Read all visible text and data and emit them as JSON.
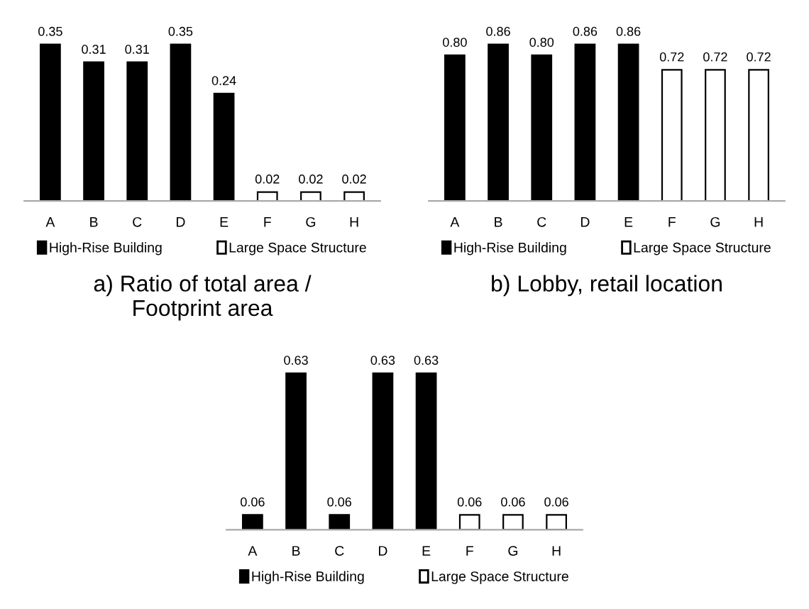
{
  "chart_data": [
    {
      "type": "bar",
      "title": "a) Ratio of total area /\nFootprint area",
      "categories": [
        "A",
        "B",
        "C",
        "D",
        "E",
        "F",
        "G",
        "H"
      ],
      "legend": "bottom",
      "series": [
        {
          "name": "High-Rise Building",
          "color": "#000000",
          "values": [
            0.35,
            0.31,
            0.31,
            0.35,
            0.24,
            null,
            null,
            null
          ],
          "value_labels": [
            "0.35",
            "0.31",
            "0.31",
            "0.35",
            "0.24",
            null,
            null,
            null
          ]
        },
        {
          "name": "Large Space Structure",
          "color": "#ffffff",
          "values": [
            null,
            null,
            null,
            null,
            null,
            0.02,
            0.02,
            0.02
          ],
          "value_labels": [
            null,
            null,
            null,
            null,
            null,
            "0.02",
            "0.02",
            "0.02"
          ]
        }
      ]
    },
    {
      "type": "bar",
      "title": "b) Lobby, retail location",
      "categories": [
        "A",
        "B",
        "C",
        "D",
        "E",
        "F",
        "G",
        "H"
      ],
      "legend": "bottom",
      "series": [
        {
          "name": "High-Rise Building",
          "color": "#000000",
          "values": [
            0.8,
            0.86,
            0.8,
            0.86,
            0.86,
            null,
            null,
            null
          ],
          "value_labels": [
            "0.80",
            "0.86",
            "0.80",
            "0.86",
            "0.86",
            null,
            null,
            null
          ]
        },
        {
          "name": "Large Space Structure",
          "color": "#ffffff",
          "values": [
            null,
            null,
            null,
            null,
            null,
            0.72,
            0.72,
            0.72
          ],
          "value_labels": [
            null,
            null,
            null,
            null,
            null,
            "0.72",
            "0.72",
            "0.72"
          ]
        }
      ]
    },
    {
      "type": "bar",
      "categories": [
        "A",
        "B",
        "C",
        "D",
        "E",
        "F",
        "G",
        "H"
      ],
      "legend": "bottom",
      "series": [
        {
          "name": "High-Rise Building",
          "color": "#000000",
          "values": [
            0.06,
            0.63,
            0.06,
            0.63,
            0.63,
            null,
            null,
            null
          ],
          "value_labels": [
            "0.06",
            "0.63",
            "0.06",
            "0.63",
            "0.63",
            null,
            null,
            null
          ]
        },
        {
          "name": "Large Space Structure",
          "color": "#ffffff",
          "values": [
            null,
            null,
            null,
            null,
            null,
            0.06,
            0.06,
            0.06
          ],
          "value_labels": [
            null,
            null,
            null,
            null,
            null,
            "0.06",
            "0.06",
            "0.06"
          ]
        }
      ]
    }
  ]
}
